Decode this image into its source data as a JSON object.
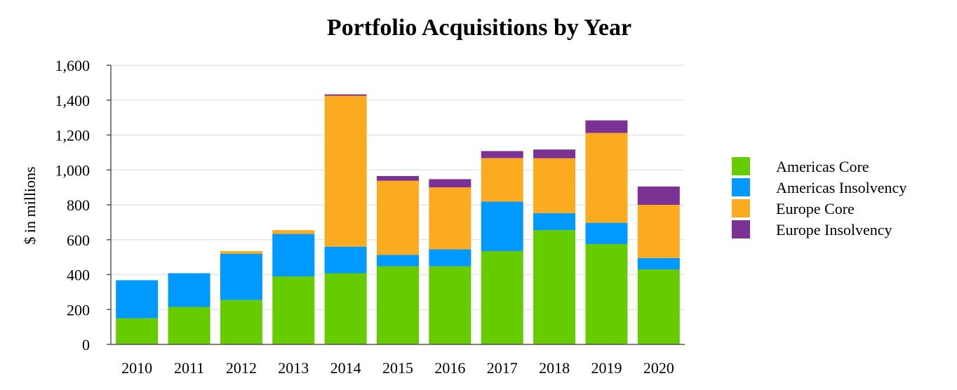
{
  "chart_data": {
    "type": "bar",
    "stacked": true,
    "title": "Portfolio Acquisitions by Year",
    "xlabel": "",
    "ylabel": "$ in millions",
    "ylim": [
      0,
      1600
    ],
    "yticks": [
      0,
      200,
      400,
      600,
      800,
      1000,
      1200,
      1400,
      1600
    ],
    "ytick_labels": [
      "0",
      "200",
      "400",
      "600",
      "800",
      "1,000",
      "1,200",
      "1,400",
      "1,600"
    ],
    "categories": [
      "2010",
      "2011",
      "2012",
      "2013",
      "2014",
      "2015",
      "2016",
      "2017",
      "2018",
      "2019",
      "2020"
    ],
    "series": [
      {
        "name": "Americas Core",
        "color": "#66cc00",
        "values": [
          150,
          215,
          255,
          390,
          408,
          448,
          448,
          535,
          655,
          575,
          430
        ]
      },
      {
        "name": "Americas Insolvency",
        "color": "#0099ff",
        "values": [
          218,
          193,
          265,
          243,
          152,
          65,
          97,
          283,
          97,
          122,
          65
        ]
      },
      {
        "name": "Europe Core",
        "color": "#fbab1f",
        "values": [
          0,
          0,
          15,
          22,
          865,
          425,
          355,
          250,
          315,
          515,
          305
        ]
      },
      {
        "name": "Europe Insolvency",
        "color": "#7b3294",
        "values": [
          0,
          0,
          0,
          0,
          8,
          27,
          47,
          40,
          50,
          72,
          105
        ]
      }
    ],
    "grid": true,
    "legend_position": "right"
  }
}
